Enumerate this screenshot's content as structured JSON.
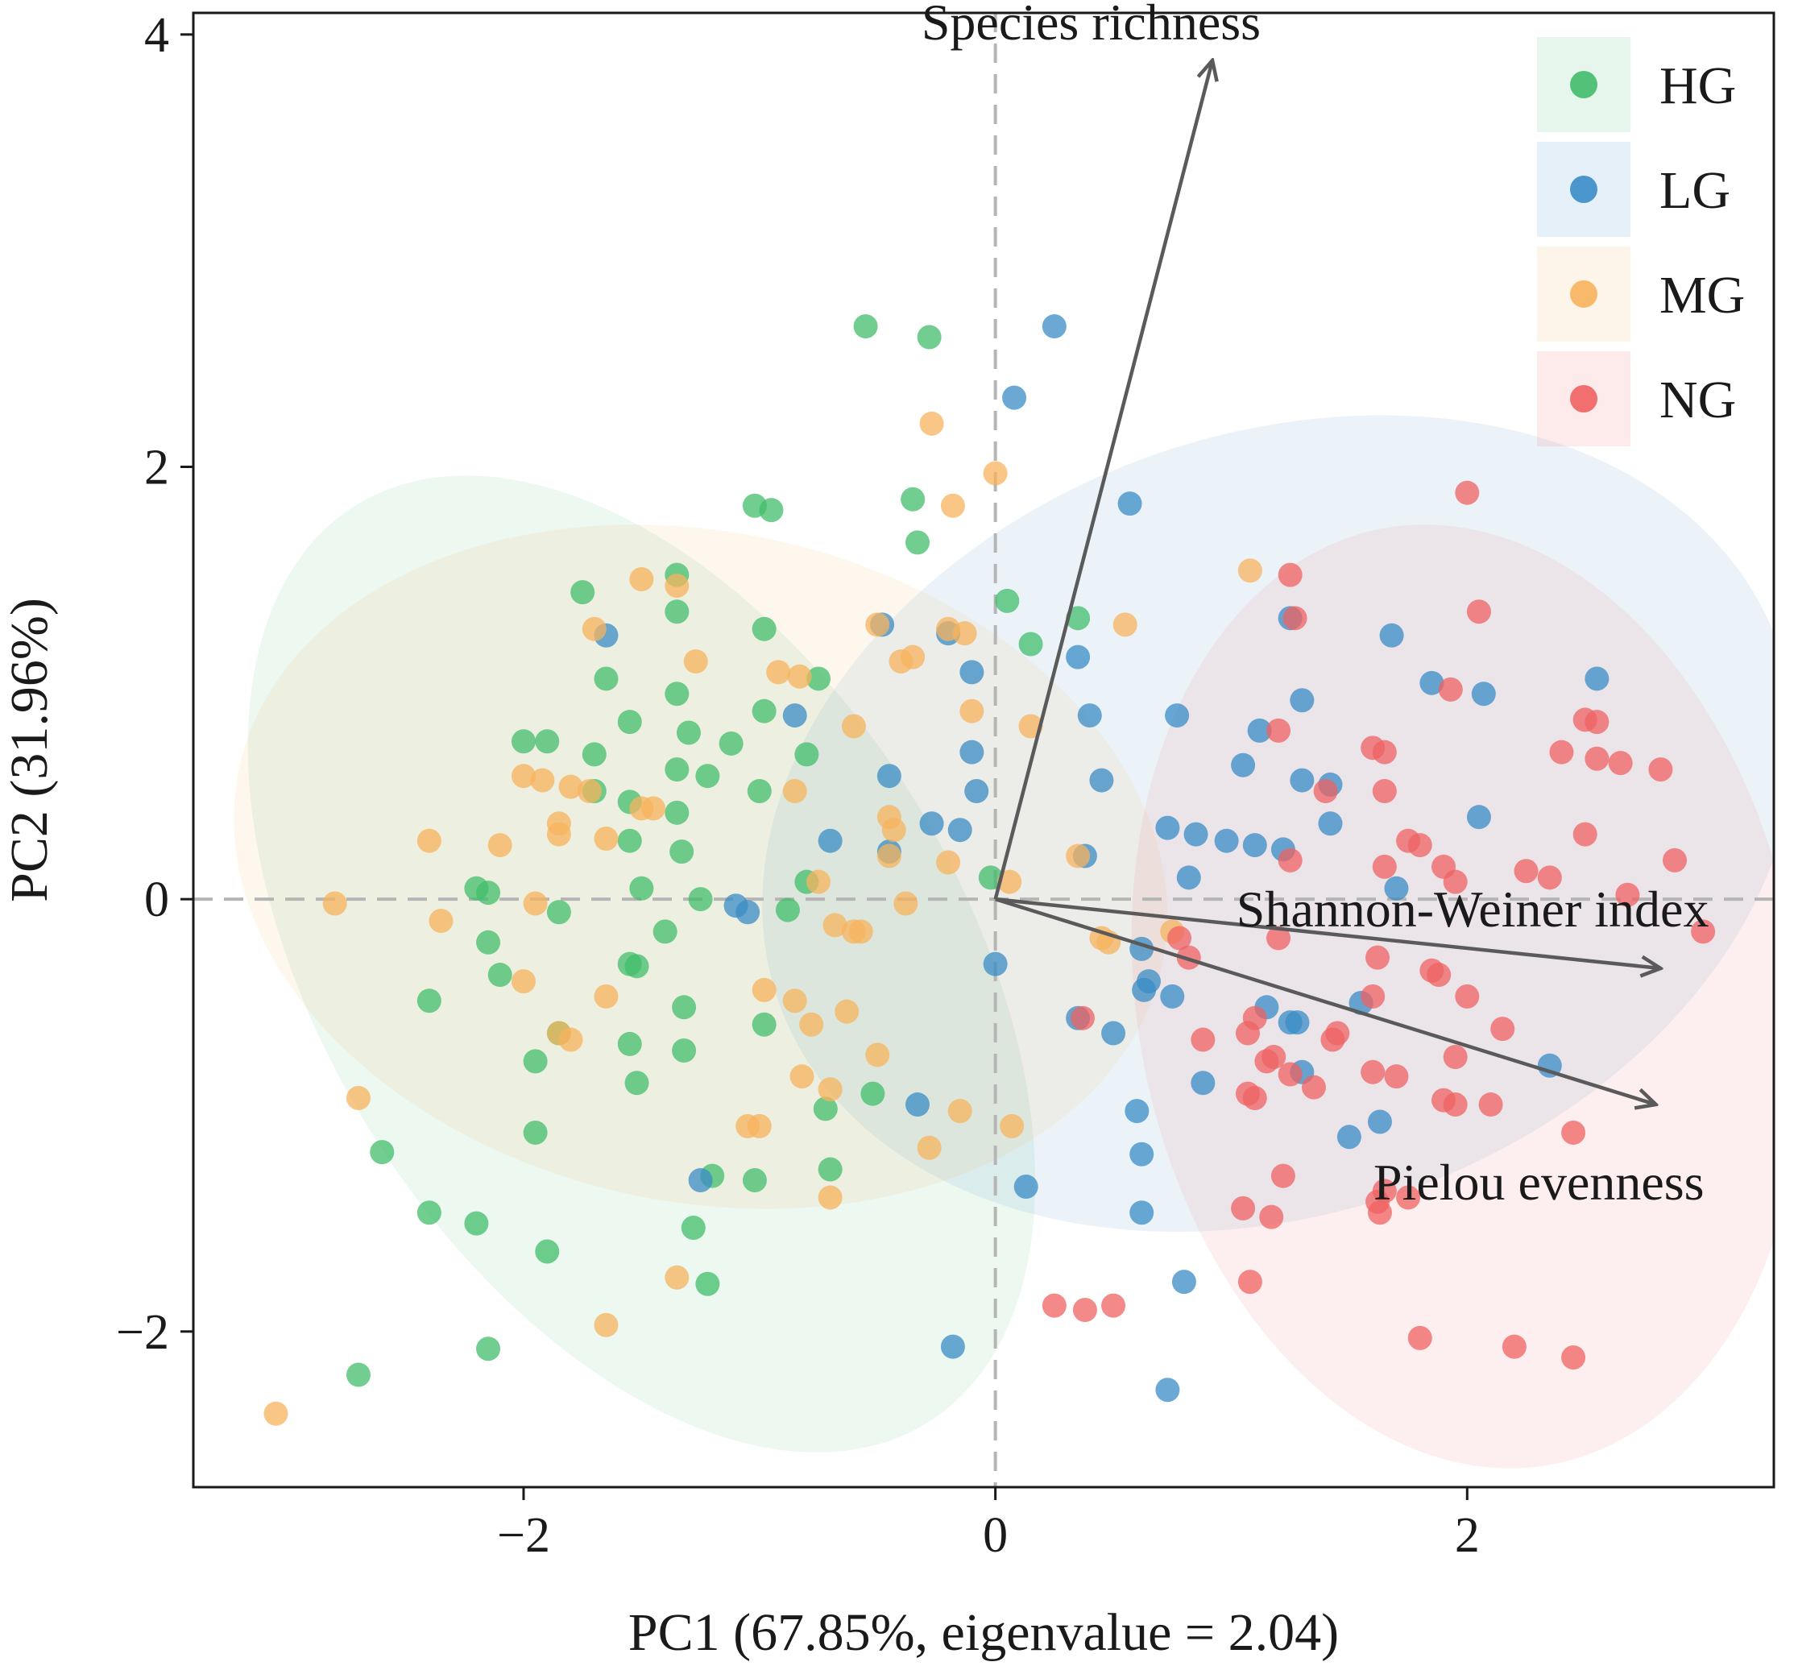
{
  "chart_data": {
    "type": "scatter",
    "subtype": "PCA biplot",
    "xlabel": "PC1 (67.85%, eigenvalue = 2.04)",
    "ylabel": "PC2 (31.96%)",
    "xlim": [
      -3.4,
      3.3
    ],
    "ylim": [
      -2.72,
      4.1
    ],
    "xticks": [
      -2,
      0,
      2
    ],
    "yticks": [
      -2,
      0,
      2,
      4
    ],
    "xtick_labels": [
      "−2",
      "0",
      "2"
    ],
    "ytick_labels": [
      "−2",
      "0",
      "2",
      "4"
    ],
    "reference_lines": {
      "x": 0,
      "y": 0,
      "style": "dashed",
      "color": "#b5b5b5"
    },
    "legend_position": "top-right",
    "series": [
      {
        "name": "HG",
        "color": "#41bd6b",
        "ellipse": {
          "center": [
            -1.5,
            -0.3
          ],
          "semi_axes": [
            1.35,
            2.5
          ],
          "angle_deg": -32
        },
        "points": [
          [
            -0.55,
            2.65
          ],
          [
            -0.28,
            2.6
          ],
          [
            -1.02,
            1.82
          ],
          [
            -0.95,
            1.8
          ],
          [
            -0.35,
            1.85
          ],
          [
            -0.33,
            1.65
          ],
          [
            -1.35,
            1.5
          ],
          [
            -1.75,
            1.42
          ],
          [
            -1.35,
            1.33
          ],
          [
            -0.98,
            1.25
          ],
          [
            -1.65,
            1.02
          ],
          [
            -1.35,
            0.95
          ],
          [
            -0.75,
            1.02
          ],
          [
            -1.9,
            0.73
          ],
          [
            -1.55,
            0.82
          ],
          [
            -1.3,
            0.77
          ],
          [
            -0.98,
            0.87
          ],
          [
            -1.12,
            0.72
          ],
          [
            -0.8,
            0.67
          ],
          [
            -1.7,
            0.67
          ],
          [
            -2.0,
            0.73
          ],
          [
            -1.35,
            0.6
          ],
          [
            -1.22,
            0.57
          ],
          [
            -1.0,
            0.5
          ],
          [
            -1.7,
            0.5
          ],
          [
            -1.55,
            0.45
          ],
          [
            -1.35,
            0.4
          ],
          [
            -1.55,
            0.27
          ],
          [
            -1.33,
            0.22
          ],
          [
            -2.2,
            0.05
          ],
          [
            -2.15,
            0.03
          ],
          [
            -1.5,
            0.05
          ],
          [
            -1.25,
            0.0
          ],
          [
            -1.85,
            -0.06
          ],
          [
            -1.4,
            -0.15
          ],
          [
            -2.15,
            -0.2
          ],
          [
            -1.55,
            -0.3
          ],
          [
            -1.52,
            -0.31
          ],
          [
            -1.32,
            -0.5
          ],
          [
            -2.1,
            -0.35
          ],
          [
            -1.85,
            -0.62
          ],
          [
            -1.55,
            -0.67
          ],
          [
            -1.32,
            -0.7
          ],
          [
            -1.95,
            -0.75
          ],
          [
            -1.52,
            -0.85
          ],
          [
            -0.98,
            -0.58
          ],
          [
            -0.72,
            -0.97
          ],
          [
            -0.52,
            -0.9
          ],
          [
            -1.95,
            -1.08
          ],
          [
            -2.6,
            -1.17
          ],
          [
            -1.2,
            -1.28
          ],
          [
            -1.02,
            -1.3
          ],
          [
            -0.7,
            -1.25
          ],
          [
            -2.4,
            -1.45
          ],
          [
            -2.2,
            -1.5
          ],
          [
            -1.28,
            -1.52
          ],
          [
            -1.9,
            -1.63
          ],
          [
            -1.22,
            -1.78
          ],
          [
            -2.15,
            -2.08
          ],
          [
            -2.7,
            -2.2
          ],
          [
            -0.8,
            0.08
          ],
          [
            -0.88,
            -0.05
          ],
          [
            -2.4,
            -0.47
          ],
          [
            0.05,
            1.38
          ],
          [
            0.15,
            1.18
          ],
          [
            0.35,
            1.3
          ],
          [
            -0.02,
            0.1
          ]
        ]
      },
      {
        "name": "LG",
        "color": "#3a8cc6",
        "ellipse": {
          "center": [
            1.2,
            0.35
          ],
          "semi_axes": [
            2.25,
            1.8
          ],
          "angle_deg": -20
        },
        "points": [
          [
            0.25,
            2.65
          ],
          [
            0.08,
            2.32
          ],
          [
            0.57,
            1.83
          ],
          [
            -0.48,
            1.27
          ],
          [
            -0.2,
            1.23
          ],
          [
            -1.65,
            1.22
          ],
          [
            0.35,
            1.12
          ],
          [
            1.25,
            1.3
          ],
          [
            1.68,
            1.22
          ],
          [
            -0.1,
            1.05
          ],
          [
            1.85,
            1.0
          ],
          [
            2.07,
            0.95
          ],
          [
            2.55,
            1.02
          ],
          [
            0.4,
            0.85
          ],
          [
            0.77,
            0.85
          ],
          [
            1.12,
            0.78
          ],
          [
            1.3,
            0.92
          ],
          [
            -0.85,
            0.85
          ],
          [
            -0.1,
            0.68
          ],
          [
            -0.45,
            0.57
          ],
          [
            0.45,
            0.55
          ],
          [
            1.05,
            0.62
          ],
          [
            1.3,
            0.55
          ],
          [
            1.42,
            0.53
          ],
          [
            -0.08,
            0.5
          ],
          [
            0.73,
            0.33
          ],
          [
            0.85,
            0.3
          ],
          [
            0.98,
            0.27
          ],
          [
            1.1,
            0.25
          ],
          [
            1.22,
            0.23
          ],
          [
            1.42,
            0.35
          ],
          [
            2.05,
            0.38
          ],
          [
            -0.7,
            0.27
          ],
          [
            -0.27,
            0.35
          ],
          [
            -0.15,
            0.32
          ],
          [
            -0.45,
            0.22
          ],
          [
            0.38,
            0.2
          ],
          [
            0.82,
            0.1
          ],
          [
            1.7,
            0.05
          ],
          [
            -1.1,
            -0.03
          ],
          [
            -1.05,
            -0.06
          ],
          [
            0.0,
            -0.3
          ],
          [
            0.62,
            -0.23
          ],
          [
            0.65,
            -0.38
          ],
          [
            0.63,
            -0.42
          ],
          [
            0.75,
            -0.45
          ],
          [
            0.35,
            -0.55
          ],
          [
            0.5,
            -0.62
          ],
          [
            1.15,
            -0.5
          ],
          [
            1.25,
            -0.57
          ],
          [
            1.28,
            -0.57
          ],
          [
            1.55,
            -0.48
          ],
          [
            1.3,
            -0.8
          ],
          [
            0.88,
            -0.85
          ],
          [
            2.35,
            -0.77
          ],
          [
            -0.33,
            -0.95
          ],
          [
            0.6,
            -0.98
          ],
          [
            1.63,
            -1.03
          ],
          [
            1.5,
            -1.1
          ],
          [
            0.62,
            -1.18
          ],
          [
            0.13,
            -1.33
          ],
          [
            0.62,
            -1.45
          ],
          [
            -1.25,
            -1.3
          ],
          [
            0.8,
            -1.77
          ],
          [
            -0.18,
            -2.07
          ],
          [
            0.73,
            -2.27
          ]
        ]
      },
      {
        "name": "MG",
        "color": "#f7b35d",
        "ellipse": {
          "center": [
            -1.25,
            0.15
          ],
          "semi_axes": [
            2.0,
            1.55
          ],
          "angle_deg": 12
        },
        "points": [
          [
            -0.27,
            2.2
          ],
          [
            0.0,
            1.97
          ],
          [
            -0.18,
            1.82
          ],
          [
            1.08,
            1.52
          ],
          [
            -1.5,
            1.48
          ],
          [
            -1.35,
            1.45
          ],
          [
            -1.7,
            1.25
          ],
          [
            -0.5,
            1.27
          ],
          [
            -0.2,
            1.25
          ],
          [
            -0.13,
            1.23
          ],
          [
            0.55,
            1.27
          ],
          [
            -1.27,
            1.1
          ],
          [
            -0.4,
            1.1
          ],
          [
            -0.35,
            1.12
          ],
          [
            -0.92,
            1.05
          ],
          [
            -0.83,
            1.03
          ],
          [
            -0.1,
            0.87
          ],
          [
            0.15,
            0.8
          ],
          [
            -0.6,
            0.8
          ],
          [
            -2.0,
            0.57
          ],
          [
            -1.92,
            0.55
          ],
          [
            -1.8,
            0.52
          ],
          [
            -1.72,
            0.5
          ],
          [
            -0.85,
            0.5
          ],
          [
            -1.85,
            0.35
          ],
          [
            -1.85,
            0.3
          ],
          [
            -1.65,
            0.28
          ],
          [
            -2.4,
            0.27
          ],
          [
            -2.1,
            0.25
          ],
          [
            -1.5,
            0.42
          ],
          [
            -1.45,
            0.42
          ],
          [
            -0.45,
            0.38
          ],
          [
            -0.43,
            0.32
          ],
          [
            -0.45,
            0.2
          ],
          [
            -0.2,
            0.17
          ],
          [
            0.35,
            0.2
          ],
          [
            -0.75,
            0.08
          ],
          [
            0.06,
            0.08
          ],
          [
            -2.8,
            -0.02
          ],
          [
            -1.95,
            -0.02
          ],
          [
            -2.35,
            -0.1
          ],
          [
            -0.38,
            -0.02
          ],
          [
            -0.68,
            -0.12
          ],
          [
            -0.6,
            -0.15
          ],
          [
            -0.57,
            -0.15
          ],
          [
            0.45,
            -0.18
          ],
          [
            0.48,
            -0.2
          ],
          [
            0.75,
            -0.15
          ],
          [
            -2.0,
            -0.38
          ],
          [
            -1.65,
            -0.45
          ],
          [
            -0.98,
            -0.42
          ],
          [
            -0.85,
            -0.47
          ],
          [
            -0.63,
            -0.52
          ],
          [
            -1.85,
            -0.62
          ],
          [
            -1.8,
            -0.65
          ],
          [
            -0.78,
            -0.58
          ],
          [
            -0.5,
            -0.72
          ],
          [
            -2.7,
            -0.92
          ],
          [
            -0.7,
            -0.88
          ],
          [
            -0.82,
            -0.82
          ],
          [
            -0.15,
            -0.98
          ],
          [
            -1.05,
            -1.05
          ],
          [
            -1.0,
            -1.05
          ],
          [
            0.07,
            -1.05
          ],
          [
            -0.28,
            -1.15
          ],
          [
            -0.7,
            -1.38
          ],
          [
            -1.35,
            -1.75
          ],
          [
            -1.65,
            -1.97
          ],
          [
            -3.05,
            -2.38
          ]
        ]
      },
      {
        "name": "NG",
        "color": "#ef6261",
        "ellipse": {
          "center": [
            2.0,
            -0.45
          ],
          "semi_axes": [
            1.4,
            2.2
          ],
          "angle_deg": -10
        },
        "points": [
          [
            2.0,
            1.88
          ],
          [
            1.25,
            1.5
          ],
          [
            1.27,
            1.3
          ],
          [
            2.05,
            1.33
          ],
          [
            1.93,
            0.97
          ],
          [
            2.5,
            0.83
          ],
          [
            2.55,
            0.82
          ],
          [
            2.55,
            0.65
          ],
          [
            2.65,
            0.63
          ],
          [
            2.82,
            0.6
          ],
          [
            1.2,
            0.78
          ],
          [
            1.6,
            0.7
          ],
          [
            1.65,
            0.68
          ],
          [
            2.4,
            0.68
          ],
          [
            1.4,
            0.5
          ],
          [
            1.65,
            0.5
          ],
          [
            1.75,
            0.27
          ],
          [
            1.8,
            0.25
          ],
          [
            2.5,
            0.3
          ],
          [
            2.88,
            0.18
          ],
          [
            1.25,
            0.18
          ],
          [
            1.65,
            0.15
          ],
          [
            1.9,
            0.15
          ],
          [
            1.95,
            0.08
          ],
          [
            2.25,
            0.13
          ],
          [
            2.35,
            0.1
          ],
          [
            2.68,
            0.02
          ],
          [
            3.0,
            -0.15
          ],
          [
            0.78,
            -0.18
          ],
          [
            1.2,
            -0.18
          ],
          [
            0.82,
            -0.27
          ],
          [
            1.62,
            -0.27
          ],
          [
            1.85,
            -0.33
          ],
          [
            1.88,
            -0.35
          ],
          [
            2.0,
            -0.45
          ],
          [
            1.6,
            -0.45
          ],
          [
            0.37,
            -0.55
          ],
          [
            1.1,
            -0.55
          ],
          [
            1.07,
            -0.62
          ],
          [
            1.45,
            -0.62
          ],
          [
            1.43,
            -0.65
          ],
          [
            2.15,
            -0.6
          ],
          [
            0.88,
            -0.65
          ],
          [
            1.18,
            -0.73
          ],
          [
            1.15,
            -0.75
          ],
          [
            1.95,
            -0.73
          ],
          [
            1.25,
            -0.81
          ],
          [
            1.6,
            -0.8
          ],
          [
            1.7,
            -0.82
          ],
          [
            1.35,
            -0.87
          ],
          [
            1.07,
            -0.9
          ],
          [
            1.1,
            -0.92
          ],
          [
            1.9,
            -0.93
          ],
          [
            1.95,
            -0.95
          ],
          [
            2.1,
            -0.95
          ],
          [
            2.45,
            -1.08
          ],
          [
            1.22,
            -1.28
          ],
          [
            1.65,
            -1.35
          ],
          [
            1.75,
            -1.38
          ],
          [
            1.62,
            -1.4
          ],
          [
            1.05,
            -1.43
          ],
          [
            1.17,
            -1.47
          ],
          [
            1.63,
            -1.45
          ],
          [
            1.08,
            -1.77
          ],
          [
            0.25,
            -1.88
          ],
          [
            0.38,
            -1.9
          ],
          [
            0.5,
            -1.88
          ],
          [
            1.8,
            -2.03
          ],
          [
            2.2,
            -2.07
          ],
          [
            2.45,
            -2.12
          ]
        ]
      }
    ],
    "loadings": [
      {
        "name": "Species richness",
        "end": [
          0.92,
          3.88
        ],
        "label_anchor": "above"
      },
      {
        "name": "Shannon-Weiner index",
        "end": [
          2.82,
          -0.32
        ],
        "label_anchor": "above"
      },
      {
        "name": "Pielou evenness",
        "end": [
          2.8,
          -0.95
        ],
        "label_anchor": "below"
      }
    ]
  }
}
